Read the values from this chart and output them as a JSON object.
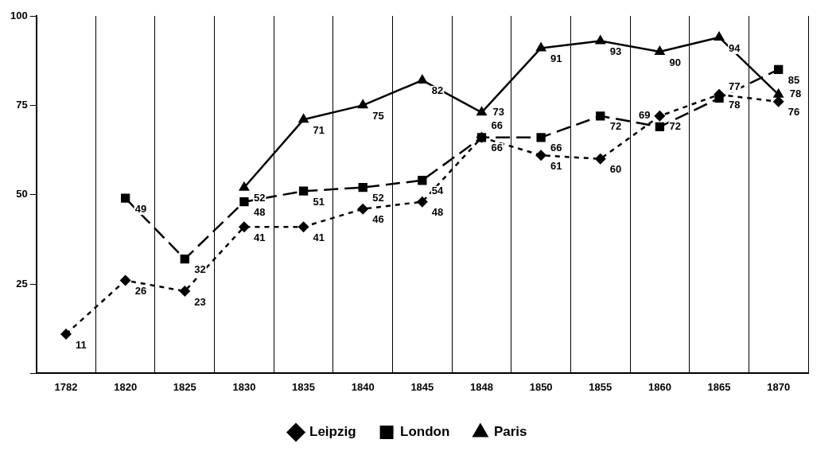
{
  "chart_data": {
    "type": "line",
    "categories": [
      "1782",
      "1820",
      "1825",
      "1830",
      "1835",
      "1840",
      "1845",
      "1848",
      "1850",
      "1855",
      "1860",
      "1865",
      "1870"
    ],
    "series": [
      {
        "name": "Leipzig",
        "color": "#000000",
        "marker": "diamond",
        "line_style": "dashed",
        "values": [
          11,
          26,
          23,
          41,
          41,
          46,
          48,
          66,
          61,
          60,
          72,
          78,
          76
        ]
      },
      {
        "name": "London",
        "color": "#000000",
        "marker": "square",
        "line_style": "dashed",
        "values": [
          null,
          49,
          32,
          48,
          51,
          52,
          54,
          66,
          66,
          72,
          69,
          77,
          85
        ]
      },
      {
        "name": "Paris",
        "color": "#000000",
        "marker": "triangle",
        "line_style": "solid",
        "values": [
          null,
          null,
          null,
          52,
          71,
          75,
          82,
          73,
          91,
          93,
          90,
          94,
          78
        ]
      }
    ],
    "ylim": [
      0,
      100
    ],
    "yticks": [
      {
        "value": 0,
        "label": null
      },
      25,
      50,
      75,
      100
    ],
    "grid": "x",
    "legend": "bottom",
    "data_labels": true
  }
}
